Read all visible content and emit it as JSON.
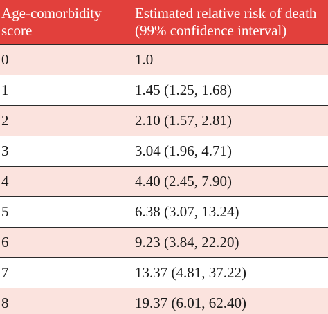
{
  "table": {
    "header": {
      "col1_line1": "Age-comorbidity",
      "col1_line2": "score",
      "col2_line1": "Estimated relative risk of death",
      "col2_line2": "(99% confidence interval)"
    },
    "rows": [
      {
        "score": "0",
        "risk": "1.0"
      },
      {
        "score": "1",
        "risk": "1.45 (1.25, 1.68)"
      },
      {
        "score": "2",
        "risk": "2.10 (1.57, 2.81)"
      },
      {
        "score": "3",
        "risk": "3.04 (1.96, 4.71)"
      },
      {
        "score": "4",
        "risk": "4.40 (2.45, 7.90)"
      },
      {
        "score": "5",
        "risk": "6.38 (3.07, 13.24)"
      },
      {
        "score": "6",
        "risk": "9.23 (3.84, 22.20)"
      },
      {
        "score": "7",
        "risk": "13.37 (4.81, 37.22)"
      },
      {
        "score": "8",
        "risk": "19.37 (6.01, 62.40)"
      }
    ]
  },
  "colors": {
    "header_background": "#e2403c",
    "header_text": "#ffffff",
    "stripe_background": "#fbe3de",
    "row_background": "#ffffff"
  }
}
